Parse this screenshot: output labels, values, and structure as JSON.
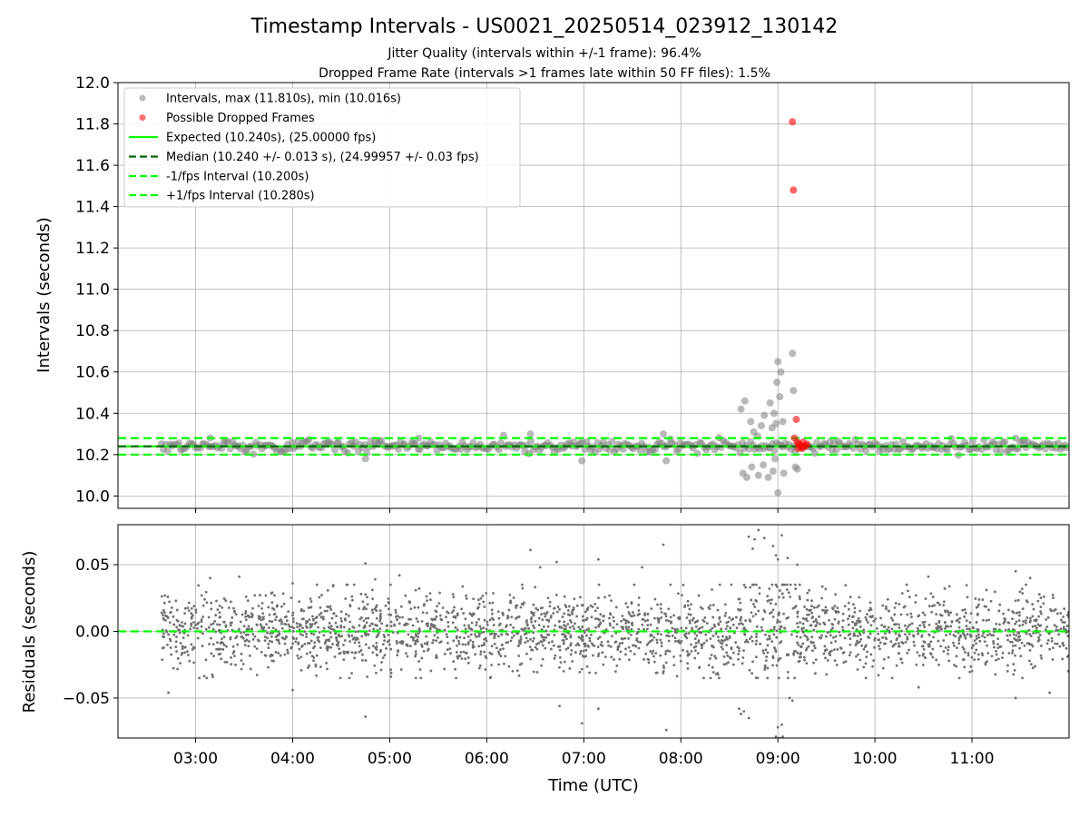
{
  "chart_data": {
    "type": "scatter",
    "title": "Timestamp Intervals - US0021_20250514_023912_130142",
    "subtitle_lines": [
      "Jitter Quality (intervals within +/-1 frame): 96.4%",
      "Dropped Frame Rate (intervals >1 frames late within 50 FF files): 1.5%"
    ],
    "xlabel": "Time (UTC)",
    "x_unit": "hours UTC",
    "xlim": [
      2.2,
      12.0
    ],
    "x_tick_values": [
      3,
      4,
      5,
      6,
      7,
      8,
      9,
      10,
      11
    ],
    "x_tick_labels": [
      "03:00",
      "04:00",
      "05:00",
      "06:00",
      "07:00",
      "08:00",
      "09:00",
      "10:00",
      "11:00"
    ],
    "panels": [
      {
        "name": "intervals",
        "ylabel": "Intervals (seconds)",
        "ylim": [
          9.94,
          12.0
        ],
        "y_tick_values": [
          10.0,
          10.2,
          10.4,
          10.6,
          10.8,
          11.0,
          11.2,
          11.4,
          11.6,
          11.8,
          12.0
        ],
        "y_tick_labels": [
          "10.0",
          "10.2",
          "10.4",
          "10.6",
          "10.8",
          "11.0",
          "11.2",
          "11.4",
          "11.6",
          "11.8",
          "12.0"
        ],
        "grid": true,
        "legend_position": "upper-left",
        "series": [
          {
            "name": "Intervals, max (11.810s), min (10.016s)",
            "kind": "scatter",
            "color": "#808080",
            "generated_band": {
              "x_range": [
                2.65,
                12.0
              ],
              "center": 10.24,
              "spread": 0.025
            },
            "points": [
              {
                "x": 8.62,
                "y": 10.42
              },
              {
                "x": 8.66,
                "y": 10.46
              },
              {
                "x": 8.72,
                "y": 10.36
              },
              {
                "x": 8.75,
                "y": 10.31
              },
              {
                "x": 8.79,
                "y": 10.29
              },
              {
                "x": 8.83,
                "y": 10.34
              },
              {
                "x": 8.86,
                "y": 10.39
              },
              {
                "x": 8.92,
                "y": 10.45
              },
              {
                "x": 8.96,
                "y": 10.4
              },
              {
                "x": 8.99,
                "y": 10.55
              },
              {
                "x": 9.0,
                "y": 10.65
              },
              {
                "x": 9.02,
                "y": 10.48
              },
              {
                "x": 9.03,
                "y": 10.6
              },
              {
                "x": 9.05,
                "y": 10.36
              },
              {
                "x": 9.15,
                "y": 10.69
              },
              {
                "x": 9.16,
                "y": 10.51
              },
              {
                "x": 8.98,
                "y": 10.35
              },
              {
                "x": 8.94,
                "y": 10.33
              },
              {
                "x": 8.64,
                "y": 10.11
              },
              {
                "x": 8.68,
                "y": 10.09
              },
              {
                "x": 8.73,
                "y": 10.14
              },
              {
                "x": 8.8,
                "y": 10.1
              },
              {
                "x": 8.85,
                "y": 10.15
              },
              {
                "x": 8.9,
                "y": 10.09
              },
              {
                "x": 8.95,
                "y": 10.12
              },
              {
                "x": 8.97,
                "y": 10.18
              },
              {
                "x": 9.0,
                "y": 10.016
              },
              {
                "x": 9.06,
                "y": 10.11
              },
              {
                "x": 9.18,
                "y": 10.14
              },
              {
                "x": 9.2,
                "y": 10.13
              },
              {
                "x": 4.75,
                "y": 10.18
              },
              {
                "x": 6.45,
                "y": 10.3
              },
              {
                "x": 6.98,
                "y": 10.17
              },
              {
                "x": 7.85,
                "y": 10.17
              },
              {
                "x": 7.82,
                "y": 10.3
              },
              {
                "x": 11.45,
                "y": 10.28
              },
              {
                "x": 3.15,
                "y": 10.28
              },
              {
                "x": 5.3,
                "y": 10.28
              }
            ]
          },
          {
            "name": "Possible Dropped Frames",
            "kind": "scatter",
            "color": "#ff0000",
            "points": [
              {
                "x": 9.15,
                "y": 11.81
              },
              {
                "x": 9.16,
                "y": 11.48
              },
              {
                "x": 9.19,
                "y": 10.37
              },
              {
                "x": 9.17,
                "y": 10.28
              },
              {
                "x": 9.2,
                "y": 10.26
              },
              {
                "x": 9.22,
                "y": 10.25
              },
              {
                "x": 9.24,
                "y": 10.24
              },
              {
                "x": 9.26,
                "y": 10.26
              },
              {
                "x": 9.28,
                "y": 10.24
              },
              {
                "x": 9.3,
                "y": 10.25
              },
              {
                "x": 9.21,
                "y": 10.23
              },
              {
                "x": 9.25,
                "y": 10.23
              }
            ]
          },
          {
            "name": "Expected (10.240s), (25.00000 fps)",
            "kind": "hline",
            "y": 10.24,
            "color": "#00ff00",
            "dash": "solid"
          },
          {
            "name": "Median (10.240 +/- 0.013 s), (24.99957 +/- 0.03 fps)",
            "kind": "hline",
            "y": 10.24,
            "color": "#006400",
            "dash": "dashed"
          },
          {
            "name": "-1/fps Interval (10.200s)",
            "kind": "hline",
            "y": 10.2,
            "color": "#00ff00",
            "dash": "dashed"
          },
          {
            "name": "+1/fps Interval (10.280s)",
            "kind": "hline",
            "y": 10.28,
            "color": "#00ff00",
            "dash": "dashed"
          }
        ]
      },
      {
        "name": "residuals",
        "ylabel": "Residuals (seconds)",
        "ylim": [
          -0.08,
          0.08
        ],
        "y_tick_values": [
          -0.05,
          0.0,
          0.05
        ],
        "y_tick_labels": [
          "−0.05",
          "0.00",
          "0.05"
        ],
        "grid": true,
        "series": [
          {
            "name": "Residuals",
            "kind": "scatter",
            "color": "#707070",
            "generated_band": {
              "x_range": [
                2.65,
                12.0
              ],
              "center": 0.0,
              "spread": 0.014,
              "point_count": 2600
            },
            "points": [
              {
                "x": 3.15,
                "y": 0.04
              },
              {
                "x": 3.45,
                "y": 0.041
              },
              {
                "x": 4.0,
                "y": 0.036
              },
              {
                "x": 4.25,
                "y": 0.035
              },
              {
                "x": 4.75,
                "y": 0.051
              },
              {
                "x": 4.85,
                "y": 0.039
              },
              {
                "x": 5.1,
                "y": 0.042
              },
              {
                "x": 6.45,
                "y": 0.061
              },
              {
                "x": 6.55,
                "y": 0.048
              },
              {
                "x": 6.72,
                "y": 0.052
              },
              {
                "x": 7.15,
                "y": 0.054
              },
              {
                "x": 7.6,
                "y": 0.048
              },
              {
                "x": 7.82,
                "y": 0.065
              },
              {
                "x": 8.7,
                "y": 0.071
              },
              {
                "x": 8.76,
                "y": 0.069
              },
              {
                "x": 8.8,
                "y": 0.076
              },
              {
                "x": 8.86,
                "y": 0.07
              },
              {
                "x": 8.95,
                "y": 0.064
              },
              {
                "x": 8.98,
                "y": 0.057
              },
              {
                "x": 9.0,
                "y": 0.054
              },
              {
                "x": 9.04,
                "y": 0.072
              },
              {
                "x": 9.1,
                "y": 0.055
              },
              {
                "x": 9.2,
                "y": 0.05
              },
              {
                "x": 8.74,
                "y": 0.062
              },
              {
                "x": 10.55,
                "y": 0.041
              },
              {
                "x": 11.45,
                "y": 0.045
              },
              {
                "x": 11.6,
                "y": 0.04
              },
              {
                "x": 2.72,
                "y": -0.046
              },
              {
                "x": 4.0,
                "y": -0.044
              },
              {
                "x": 4.75,
                "y": -0.064
              },
              {
                "x": 6.75,
                "y": -0.056
              },
              {
                "x": 6.98,
                "y": -0.069
              },
              {
                "x": 7.15,
                "y": -0.058
              },
              {
                "x": 7.85,
                "y": -0.074
              },
              {
                "x": 8.6,
                "y": -0.058
              },
              {
                "x": 8.65,
                "y": -0.06
              },
              {
                "x": 8.7,
                "y": -0.065
              },
              {
                "x": 8.62,
                "y": -0.062
              },
              {
                "x": 8.98,
                "y": -0.079
              },
              {
                "x": 9.02,
                "y": -0.08
              },
              {
                "x": 9.05,
                "y": -0.079
              },
              {
                "x": 9.0,
                "y": -0.072
              },
              {
                "x": 9.04,
                "y": -0.07
              },
              {
                "x": 9.12,
                "y": -0.05
              },
              {
                "x": 9.15,
                "y": -0.052
              },
              {
                "x": 11.45,
                "y": -0.05
              },
              {
                "x": 11.8,
                "y": -0.046
              },
              {
                "x": 10.45,
                "y": -0.042
              }
            ]
          },
          {
            "name": "Zero",
            "kind": "hline",
            "y": 0.0,
            "color": "#00ff00",
            "dash": "dashed"
          }
        ]
      }
    ]
  }
}
